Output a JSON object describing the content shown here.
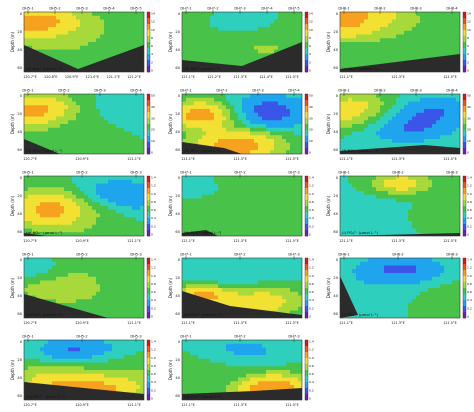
{
  "chart_data": [
    {
      "type": "heatmap",
      "variable": "NH4+",
      "label": "(a) NH₄⁺ (μmol L⁻¹)",
      "stations": [
        "DH5-1",
        "DH5-2",
        "DH5-3",
        "DH5-4",
        "DH5-5"
      ],
      "xticks": [
        "120.7°E",
        "120.8°E",
        "120.9°E",
        "121.0°E",
        "121.1°E",
        "121.2°E"
      ],
      "ylabel": "Depth (m)",
      "yticks": [
        "0",
        "20",
        "40",
        "60"
      ],
      "ylim": [
        0,
        60
      ],
      "colorbar": {
        "min": 0,
        "max": 14,
        "ticks": [
          "14",
          "12",
          "10",
          "8",
          "6",
          "4",
          "2",
          "0"
        ]
      }
    },
    {
      "type": "heatmap",
      "variable": "NH4+",
      "label": "(b) NH₄⁺ (μmol L⁻¹)",
      "stations": [
        "DH7-1",
        "DH7-2",
        "DH7-3",
        "DH7-4",
        "DH7-5"
      ],
      "xticks": [
        "121.1°E",
        "121.2°E",
        "121.3°E",
        "121.4°E",
        "121.5°E"
      ],
      "ylabel": "Depth (m)",
      "yticks": [
        "0",
        "20",
        "40",
        "60"
      ],
      "ylim": [
        0,
        60
      ],
      "colorbar": {
        "min": 0,
        "max": 14,
        "ticks": [
          "14",
          "12",
          "10",
          "8",
          "6",
          "4",
          "2",
          "0"
        ]
      }
    },
    {
      "type": "heatmap",
      "variable": "NH4+",
      "label": "(c) NH₄⁺ (μmol L⁻¹)",
      "stations": [
        "DH8-1",
        "DH8-2",
        "DH8-3",
        "DH8-4"
      ],
      "xticks": [
        "121.1°E",
        "121.3°E",
        "121.5°E"
      ],
      "ylabel": "Depth (m)",
      "yticks": [
        "0",
        "20",
        "40",
        "60"
      ],
      "ylim": [
        0,
        60
      ],
      "colorbar": {
        "min": 0,
        "max": 14,
        "ticks": [
          "14",
          "12",
          "10",
          "8",
          "6",
          "4",
          "2",
          "0"
        ]
      }
    },
    {
      "type": "heatmap",
      "variable": "NO3-",
      "label": "(d) NO₃⁻ (μmol L⁻¹)",
      "stations": [
        "DH5-1",
        "DH5-2",
        "DH5-3",
        "DH5-4"
      ],
      "xticks": [
        "120.7°E",
        "120.9°E",
        "121.1°E"
      ],
      "ylabel": "Depth (m)",
      "yticks": [
        "0",
        "20",
        "40",
        "60"
      ],
      "ylim": [
        0,
        60
      ],
      "colorbar": {
        "min": 0,
        "max": 50,
        "ticks": [
          "50",
          "40",
          "30",
          "20",
          "10",
          "0"
        ]
      }
    },
    {
      "type": "heatmap",
      "variable": "NO3-",
      "label": "(e) NO₃⁻ (μmol L⁻¹)",
      "stations": [
        "DH7-1",
        "DH7-2",
        "DH7-3",
        "DH7-4"
      ],
      "xticks": [
        "121.1°E",
        "121.3°E",
        "121.5°E"
      ],
      "ylabel": "Depth (m)",
      "yticks": [
        "0",
        "20",
        "40",
        "60"
      ],
      "ylim": [
        0,
        60
      ],
      "colorbar": {
        "min": 0,
        "max": 50,
        "ticks": [
          "50",
          "40",
          "30",
          "20",
          "10",
          "0"
        ]
      }
    },
    {
      "type": "heatmap",
      "variable": "NO3-",
      "label": "(f) NO₃⁻ (μmol L⁻¹)",
      "stations": [
        "DH8-1",
        "DH8-2",
        "DH8-3",
        "DH8-4"
      ],
      "xticks": [
        "121.1°E",
        "121.3°E",
        "121.5°E"
      ],
      "ylabel": "Depth (m)",
      "yticks": [
        "0",
        "20",
        "40",
        "60"
      ],
      "ylim": [
        0,
        60
      ],
      "colorbar": {
        "min": 0,
        "max": 50,
        "ticks": [
          "50",
          "40",
          "30",
          "20",
          "10",
          "0"
        ]
      }
    },
    {
      "type": "heatmap",
      "variable": "NO2-",
      "label": "(g) NO₂⁻ (μmol L⁻¹)",
      "stations": [
        "DH5-1",
        "DH5-2",
        "DH5-3"
      ],
      "xticks": [
        "120.7°E",
        "120.9°E",
        "121.1°E"
      ],
      "ylabel": "Depth (m)",
      "yticks": [
        "0",
        "20",
        "40",
        "60"
      ],
      "ylim": [
        0,
        60
      ],
      "colorbar": {
        "min": 0,
        "max": 1.4,
        "ticks": [
          "1.4",
          "1.2",
          "1.0",
          "0.8",
          "0.6",
          "0.4",
          "0.2",
          "0"
        ]
      }
    },
    {
      "type": "heatmap",
      "variable": "PO4 3-",
      "label": "(h) PO₄³⁻ (μmol L⁻¹)",
      "stations": [
        "DH7-1",
        "DH7-2",
        "DH7-3"
      ],
      "xticks": [
        "121.1°E",
        "121.3°E",
        "121.5°E"
      ],
      "ylabel": "Depth (m)",
      "yticks": [
        "0",
        "20",
        "40",
        "60"
      ],
      "ylim": [
        0,
        60
      ],
      "colorbar": {
        "min": 0,
        "max": 1.4,
        "ticks": [
          "1.4",
          "1.2",
          "1.0",
          "0.8",
          "0.6",
          "0.4",
          "0.2",
          "0"
        ]
      }
    },
    {
      "type": "heatmap",
      "variable": "PO4 3-",
      "label": "(i) PO₄³⁻ (μmol L⁻¹)",
      "stations": [
        "DH8-1",
        "DH8-2",
        "DH8-3"
      ],
      "xticks": [
        "121.1°E",
        "121.3°E",
        "121.5°E"
      ],
      "ylabel": "Depth (m)",
      "yticks": [
        "0",
        "20",
        "40",
        "60"
      ],
      "ylim": [
        0,
        60
      ],
      "colorbar": {
        "min": 0,
        "max": 1.4,
        "ticks": [
          "1.4",
          "1.2",
          "1.0",
          "0.8",
          "0.6",
          "0.4",
          "0.2",
          "0"
        ]
      }
    },
    {
      "type": "heatmap",
      "variable": "PO4 3-",
      "label": "(j) PO₄³⁻ (μmol L⁻¹)",
      "stations": [
        "DH5-1",
        "DH5-2",
        "DH5-3"
      ],
      "xticks": [
        "120.7°E",
        "120.9°E",
        "121.1°E"
      ],
      "ylabel": "Depth (m)",
      "yticks": [
        "0",
        "20",
        "40",
        "60"
      ],
      "ylim": [
        0,
        60
      ],
      "colorbar": {
        "min": 0,
        "max": 1.4,
        "ticks": [
          "1.4",
          "1.2",
          "1.0",
          "0.8",
          "0.6",
          "0.4",
          "0.2",
          "0"
        ]
      }
    },
    {
      "type": "heatmap",
      "variable": "PO4 3-",
      "label": "(k) PO₄³⁻ (μmol L⁻¹)",
      "stations": [
        "DH7-1",
        "DH7-2",
        "DH7-3"
      ],
      "xticks": [
        "121.1°E",
        "121.3°E",
        "121.5°E"
      ],
      "ylabel": "Depth (m)",
      "yticks": [
        "0",
        "20",
        "40",
        "60"
      ],
      "ylim": [
        0,
        60
      ],
      "colorbar": {
        "min": 0,
        "max": 1.4,
        "ticks": [
          "1.4",
          "1.2",
          "1.0",
          "0.8",
          "0.6",
          "0.4",
          "0.2",
          "0"
        ]
      }
    },
    {
      "type": "heatmap",
      "variable": "PO4 3-",
      "label": "(l) PO₄³⁻ (μmol L⁻¹)",
      "stations": [
        "DH8-1",
        "DH8-2",
        "DH8-3"
      ],
      "xticks": [
        "121.1°E",
        "121.3°E",
        "121.5°E"
      ],
      "ylabel": "Depth (m)",
      "yticks": [
        "0",
        "20",
        "40",
        "60"
      ],
      "ylim": [
        0,
        60
      ],
      "colorbar": {
        "min": 0,
        "max": 1.4,
        "ticks": [
          "1.4",
          "1.2",
          "1.0",
          "0.8",
          "0.6",
          "0.4",
          "0.2",
          "0"
        ]
      }
    },
    {
      "type": "heatmap",
      "variable": "PO4 3-",
      "label": "(m) PO₄³⁻ (μmol L⁻¹)",
      "stations": [
        "DH5-1",
        "DH5-2",
        "DH5-3"
      ],
      "xticks": [
        "120.7°E",
        "120.9°E",
        "121.1°E"
      ],
      "ylabel": "Depth (m)",
      "yticks": [
        "0",
        "20",
        "40",
        "60"
      ],
      "ylim": [
        0,
        60
      ],
      "colorbar": {
        "min": 0,
        "max": 1.4,
        "ticks": [
          "1.4",
          "1.2",
          "1.0",
          "0.8",
          "0.6",
          "0.4",
          "0.2",
          "0"
        ]
      }
    },
    {
      "type": "heatmap",
      "variable": "PO4 3-",
      "label": "(n) PO₄³⁻ (μmol L⁻¹)",
      "stations": [
        "DH7-1",
        "DH7-2",
        "DH7-3"
      ],
      "xticks": [
        "121.1°E",
        "121.3°E",
        "121.5°E"
      ],
      "ylabel": "Depth (m)",
      "yticks": [
        "0",
        "20",
        "40",
        "60"
      ],
      "ylim": [
        0,
        60
      ],
      "colorbar": {
        "min": 0,
        "max": 1.4,
        "ticks": [
          "1.4",
          "1.2",
          "1.0",
          "0.8",
          "0.6",
          "0.4",
          "0.2",
          "0"
        ]
      }
    }
  ]
}
